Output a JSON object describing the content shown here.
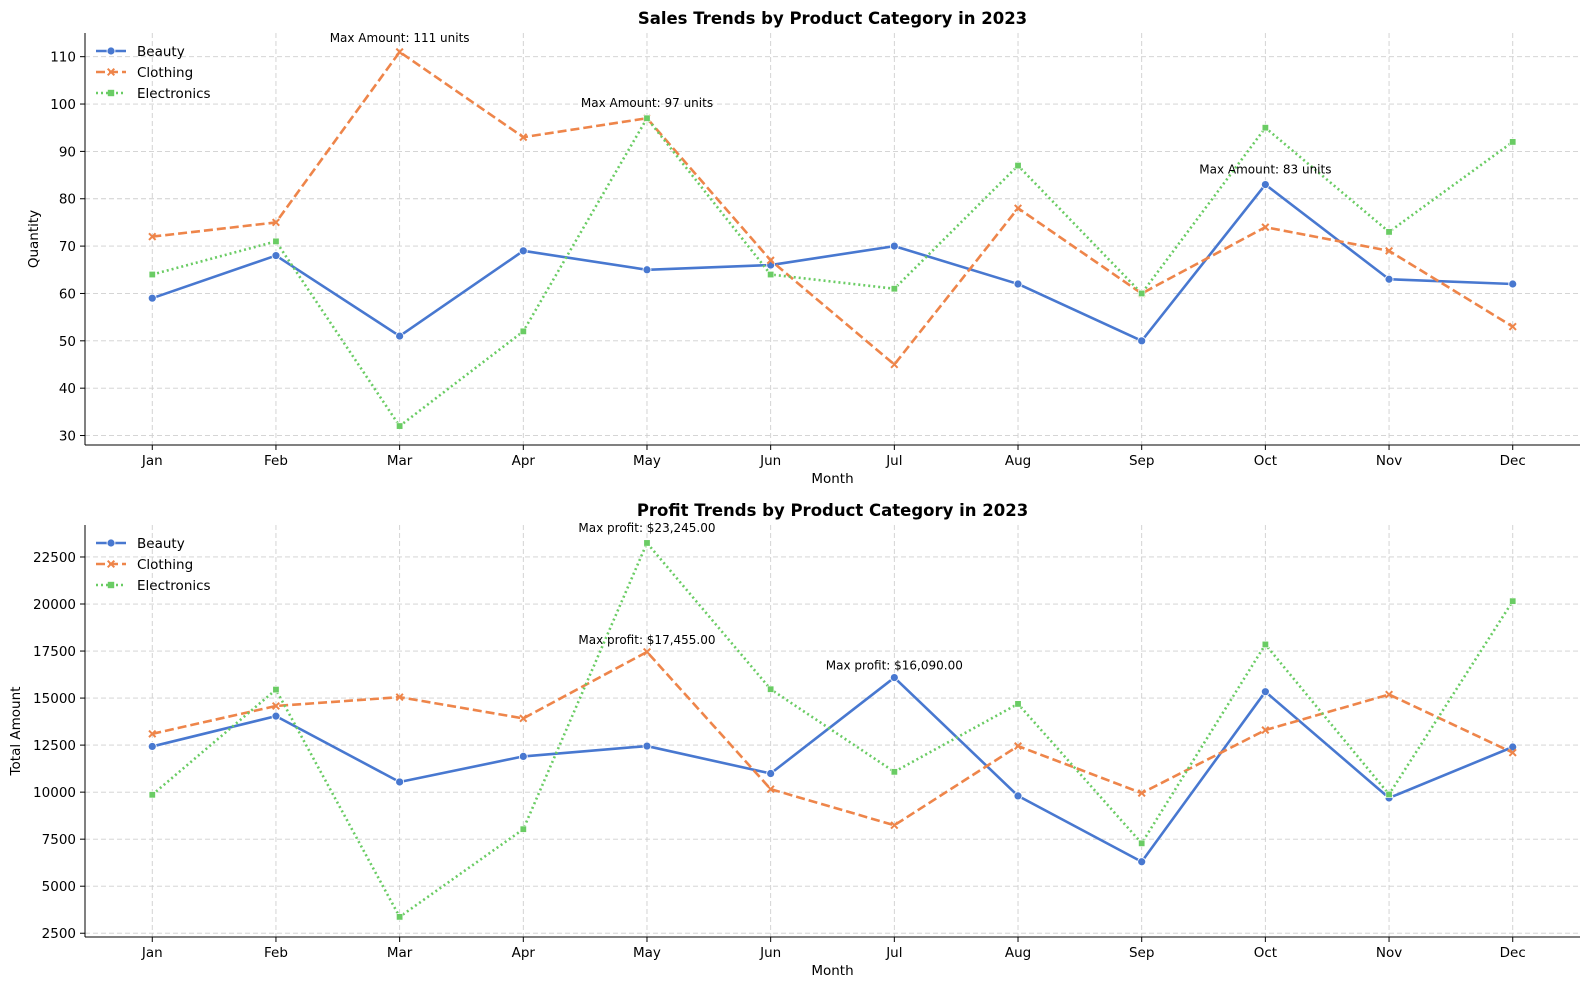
{
  "colors": {
    "Beauty": "#4878d0",
    "Clothing": "#ee854a",
    "Electronics": "#6acc64"
  },
  "chart_data": [
    {
      "type": "line",
      "title": "Sales Trends by Product Category in 2023",
      "xlabel": "Month",
      "ylabel": "Quantity",
      "categories": [
        "Jan",
        "Feb",
        "Mar",
        "Apr",
        "May",
        "Jun",
        "Jul",
        "Aug",
        "Sep",
        "Oct",
        "Nov",
        "Dec"
      ],
      "ylim": [
        28,
        115
      ],
      "yticks": [
        30,
        40,
        50,
        60,
        70,
        80,
        90,
        100,
        110
      ],
      "grid": true,
      "legend": "top-left",
      "series": [
        {
          "name": "Beauty",
          "marker": "circle",
          "line": "solid",
          "values": [
            59,
            68,
            51,
            69,
            65,
            66,
            70,
            62,
            50,
            83,
            63,
            62
          ]
        },
        {
          "name": "Clothing",
          "marker": "x",
          "line": "dashed",
          "values": [
            72,
            75,
            111,
            93,
            97,
            67,
            45,
            78,
            60,
            74,
            69,
            53
          ]
        },
        {
          "name": "Electronics",
          "marker": "square",
          "line": "dotted",
          "values": [
            64,
            71,
            32,
            52,
            97,
            64,
            61,
            87,
            60,
            95,
            73,
            92
          ]
        }
      ],
      "annotations": [
        {
          "text": "Max Amount: 111 units",
          "category": "Mar",
          "y": 111
        },
        {
          "text": "Max Amount: 97 units",
          "category": "May",
          "y": 97
        },
        {
          "text": "Max Amount: 83 units",
          "category": "Oct",
          "y": 83
        }
      ]
    },
    {
      "type": "line",
      "title": "Profit Trends by Product Category in 2023",
      "xlabel": "Month",
      "ylabel": "Total Amount",
      "categories": [
        "Jan",
        "Feb",
        "Mar",
        "Apr",
        "May",
        "Jun",
        "Jul",
        "Aug",
        "Sep",
        "Oct",
        "Nov",
        "Dec"
      ],
      "ylim": [
        2300,
        24200
      ],
      "yticks": [
        2500,
        5000,
        7500,
        10000,
        12500,
        15000,
        17500,
        20000,
        22500
      ],
      "grid": true,
      "legend": "top-left",
      "series": [
        {
          "name": "Beauty",
          "marker": "circle",
          "line": "solid",
          "values": [
            12430,
            14040,
            10540,
            11900,
            12450,
            10990,
            16090,
            9800,
            6300,
            15340,
            9690,
            12400
          ]
        },
        {
          "name": "Clothing",
          "marker": "x",
          "line": "dashed",
          "values": [
            13100,
            14580,
            15050,
            13920,
            17455,
            10160,
            8240,
            12450,
            9950,
            13300,
            15190,
            12100
          ]
        },
        {
          "name": "Electronics",
          "marker": "square",
          "line": "dotted",
          "values": [
            9860,
            15450,
            3370,
            8030,
            23245,
            15470,
            11080,
            14690,
            7280,
            17850,
            9880,
            20150
          ]
        }
      ],
      "annotations": [
        {
          "text": "Max profit: $23,245.00",
          "category": "May",
          "y": 23245
        },
        {
          "text": "Max profit: $17,455.00",
          "category": "May",
          "y": 17455
        },
        {
          "text": "Max profit: $16,090.00",
          "category": "Jul",
          "y": 16090
        }
      ]
    }
  ]
}
